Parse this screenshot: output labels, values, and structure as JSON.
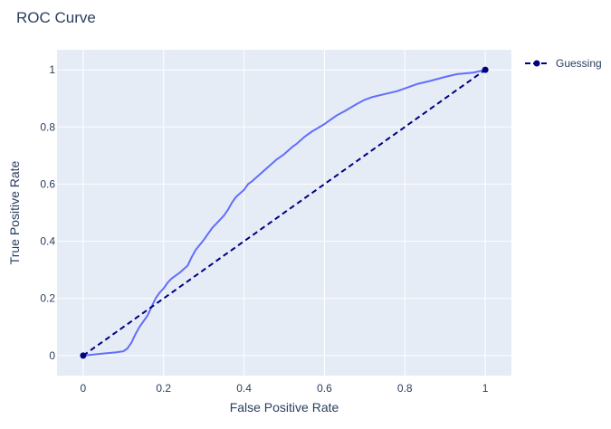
{
  "chart_data": {
    "type": "line",
    "title": "ROC Curve",
    "xlabel": "False Positive Rate",
    "ylabel": "True Positive Rate",
    "xlim": [
      -0.065,
      1.065
    ],
    "ylim": [
      -0.07,
      1.07
    ],
    "x_ticks": [
      0,
      0.2,
      0.4,
      0.6,
      0.8,
      1
    ],
    "x_tick_labels": [
      "0",
      "0.2",
      "0.4",
      "0.6",
      "0.8",
      "1"
    ],
    "y_ticks": [
      0,
      0.2,
      0.4,
      0.6,
      0.8,
      1
    ],
    "y_tick_labels": [
      "0",
      "0.2",
      "0.4",
      "0.6",
      "0.8",
      "1"
    ],
    "grid": true,
    "legend_position": "top-right",
    "series": [
      {
        "name": "ROC",
        "color": "#636efa",
        "show_in_legend": false,
        "x": [
          0,
          0.02,
          0.05,
          0.08,
          0.1,
          0.11,
          0.12,
          0.13,
          0.14,
          0.15,
          0.16,
          0.17,
          0.18,
          0.19,
          0.2,
          0.21,
          0.22,
          0.24,
          0.26,
          0.27,
          0.28,
          0.3,
          0.32,
          0.34,
          0.35,
          0.36,
          0.37,
          0.38,
          0.4,
          0.41,
          0.42,
          0.44,
          0.46,
          0.48,
          0.5,
          0.52,
          0.53,
          0.55,
          0.57,
          0.6,
          0.63,
          0.65,
          0.68,
          0.7,
          0.72,
          0.75,
          0.78,
          0.8,
          0.83,
          0.86,
          0.9,
          0.93,
          0.97,
          1
        ],
        "y": [
          0,
          0.003,
          0.007,
          0.011,
          0.015,
          0.025,
          0.045,
          0.075,
          0.1,
          0.12,
          0.14,
          0.17,
          0.2,
          0.22,
          0.235,
          0.255,
          0.27,
          0.29,
          0.315,
          0.345,
          0.37,
          0.405,
          0.445,
          0.475,
          0.49,
          0.51,
          0.535,
          0.555,
          0.58,
          0.6,
          0.61,
          0.635,
          0.66,
          0.685,
          0.705,
          0.73,
          0.74,
          0.765,
          0.785,
          0.81,
          0.84,
          0.855,
          0.88,
          0.895,
          0.905,
          0.915,
          0.925,
          0.935,
          0.95,
          0.96,
          0.975,
          0.985,
          0.99,
          1
        ]
      },
      {
        "name": "Guessing",
        "color": "#000080",
        "dash": true,
        "markers": true,
        "show_in_legend": true,
        "x": [
          0,
          1
        ],
        "y": [
          0,
          1
        ]
      }
    ]
  }
}
